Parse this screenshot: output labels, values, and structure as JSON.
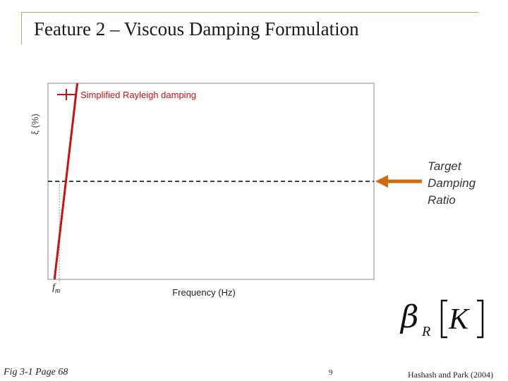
{
  "slide": {
    "title": "Feature 2 – Viscous Damping Formulation",
    "target_label_lines": [
      "Target",
      "Damping",
      "Ratio"
    ],
    "formula": {
      "beta": "β",
      "subscript": "R",
      "matrix": "K"
    },
    "footer": {
      "left": "Fig 3-1 Page 68",
      "center": "9",
      "right": "Hashash and Park (2004)"
    }
  },
  "chart_data": {
    "type": "line",
    "xlabel": "Frequency (Hz)",
    "ylabel": "ξ (%)",
    "x_tick_labels": [
      {
        "base": "f",
        "sub": "m"
      }
    ],
    "series": [
      {
        "name": "Simplified Rayleigh damping",
        "x": [
          0.02,
          0.09
        ],
        "y": [
          0.0,
          1.0
        ],
        "color": "#cc1111"
      }
    ],
    "target_ratio": 0.5,
    "fm": 0.035,
    "xlim": [
      0,
      1
    ],
    "ylim": [
      0,
      1
    ],
    "grid": false,
    "legend": "top-left",
    "colors": {
      "axis": "#888888",
      "target_line": "#000000",
      "arrow": "#d06a10",
      "marker": "#cc1111"
    }
  }
}
